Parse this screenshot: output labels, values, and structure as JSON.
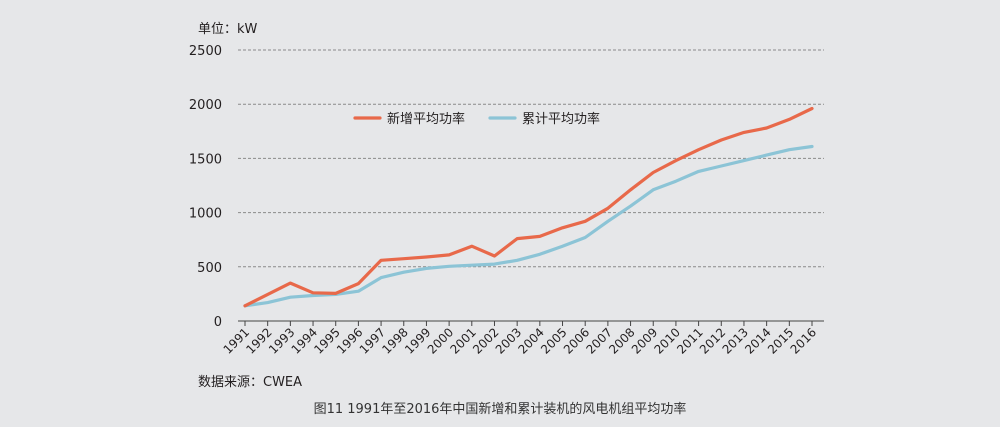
{
  "chart_data": {
    "type": "line",
    "title": "图11 1991年至2016年中国新增和累计装机的风电机组平均功率",
    "unit_label": "单位：kW",
    "source_label": "数据来源：CWEA",
    "xlabel": "",
    "ylabel": "",
    "ylim": [
      0,
      2500
    ],
    "yticks": [
      "0",
      "500",
      "1000",
      "1500",
      "2000",
      "2500"
    ],
    "ytick_values": [
      0,
      500,
      1000,
      1500,
      2000,
      2500
    ],
    "grid": true,
    "legend_position": "top-left",
    "categories": [
      "1991",
      "1992",
      "1993",
      "1994",
      "1995",
      "1996",
      "1997",
      "1998",
      "1999",
      "2000",
      "2001",
      "2002",
      "2003",
      "2004",
      "2005",
      "2006",
      "2007",
      "2008",
      "2009",
      "2010",
      "2011",
      "2012",
      "2013",
      "2014",
      "2015",
      "2016"
    ],
    "series": [
      {
        "name": "新增平均功率",
        "color": "#e8694a",
        "values": [
          140,
          245,
          350,
          260,
          255,
          345,
          560,
          575,
          590,
          610,
          690,
          600,
          760,
          780,
          860,
          920,
          1040,
          1210,
          1370,
          1480,
          1580,
          1670,
          1740,
          1780,
          1860,
          1960
        ]
      },
      {
        "name": "累计平均功率",
        "color": "#8cc4d6",
        "values": [
          140,
          170,
          220,
          235,
          245,
          275,
          400,
          450,
          485,
          505,
          515,
          525,
          560,
          615,
          690,
          770,
          920,
          1060,
          1210,
          1290,
          1380,
          1430,
          1480,
          1530,
          1580,
          1610
        ]
      }
    ]
  }
}
